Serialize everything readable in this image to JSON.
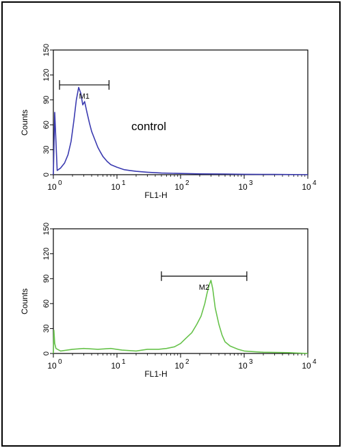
{
  "colors": {
    "background": "#ffffff",
    "frame": "#000000",
    "axis": "#000000"
  },
  "chart_data": [
    {
      "type": "line",
      "title": "",
      "xlabel": "FL1-H",
      "ylabel": "Counts",
      "xscale": "log",
      "xlim": [
        1,
        10000
      ],
      "ylim": [
        0,
        150
      ],
      "yticks": [
        "0",
        "30",
        "60",
        "90",
        "120",
        "150"
      ],
      "xtick_base": [
        "10",
        "10",
        "10",
        "10",
        "10"
      ],
      "xtick_exp": [
        "0",
        "1",
        "2",
        "3",
        "4"
      ],
      "annotation": "control",
      "gate": {
        "label": "M1",
        "x_start": 1.25,
        "x_end": 7.5,
        "y": 108
      },
      "series": [
        {
          "color": "#3a3ab0",
          "x": [
            1.0,
            1.05,
            1.15,
            1.3,
            1.5,
            1.7,
            1.9,
            2.1,
            2.3,
            2.5,
            2.7,
            2.9,
            3.1,
            3.4,
            3.7,
            4.0,
            4.5,
            5.0,
            5.5,
            6.0,
            7.0,
            8.0,
            10,
            13,
            16,
            20,
            30,
            50,
            100,
            200,
            500,
            1000,
            3000,
            10000
          ],
          "y": [
            0,
            75,
            5,
            8,
            14,
            24,
            40,
            65,
            90,
            105,
            98,
            84,
            88,
            74,
            62,
            52,
            42,
            33,
            27,
            22,
            16,
            12,
            9,
            6,
            5,
            4,
            3,
            2,
            1.5,
            1,
            0.8,
            0.5,
            0.3,
            0
          ]
        }
      ]
    },
    {
      "type": "line",
      "title": "",
      "xlabel": "FL1-H",
      "ylabel": "Counts",
      "xscale": "log",
      "xlim": [
        1,
        10000
      ],
      "ylim": [
        0,
        150
      ],
      "yticks": [
        "0",
        "30",
        "60",
        "90",
        "120",
        "150"
      ],
      "xtick_base": [
        "10",
        "10",
        "10",
        "10",
        "10"
      ],
      "xtick_exp": [
        "0",
        "1",
        "2",
        "3",
        "4"
      ],
      "annotation": "",
      "gate": {
        "label": "M2",
        "x_start": 50,
        "x_end": 1100,
        "y": 93
      },
      "series": [
        {
          "color": "#66c24a",
          "x": [
            1.0,
            1.02,
            1.05,
            1.1,
            1.3,
            2,
            3,
            5,
            8,
            12,
            20,
            30,
            45,
            60,
            80,
            100,
            120,
            150,
            180,
            210,
            240,
            260,
            280,
            300,
            320,
            350,
            400,
            450,
            500,
            600,
            800,
            1000,
            1500,
            2000,
            5000,
            10000
          ],
          "y": [
            0,
            28,
            12,
            6,
            3,
            5,
            6,
            5,
            6,
            4,
            3,
            5,
            5,
            6,
            8,
            12,
            18,
            25,
            35,
            45,
            60,
            72,
            82,
            88,
            78,
            55,
            35,
            22,
            14,
            9,
            5,
            3,
            2,
            1.5,
            1,
            0
          ]
        }
      ]
    }
  ]
}
